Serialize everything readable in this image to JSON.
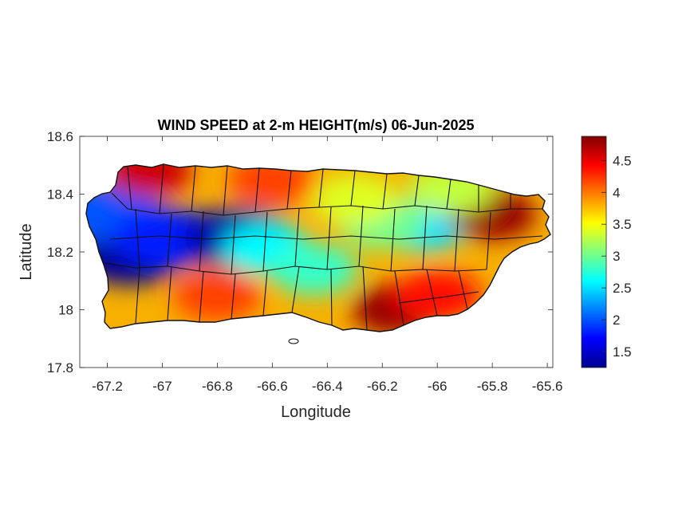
{
  "chart_data": {
    "type": "heatmap",
    "title": "WIND SPEED at 2-m HEIGHT(m/s) 06-Jun-2025",
    "xlabel": "Longitude",
    "ylabel": "Latitude",
    "xlim": [
      -67.3,
      -65.58
    ],
    "ylim": [
      17.8,
      18.6
    ],
    "x_ticks": [
      -67.2,
      -67,
      -66.8,
      -66.6,
      -66.4,
      -66.2,
      -66,
      -65.8,
      -65.6
    ],
    "x_tick_labels": [
      "-67.2",
      "-67",
      "-66.8",
      "-66.6",
      "-66.4",
      "-66.2",
      "-66",
      "-65.8",
      "-65.6"
    ],
    "y_ticks": [
      17.8,
      18,
      18.2,
      18.4,
      18.6
    ],
    "y_tick_labels": [
      "17.8",
      "18",
      "18.2",
      "18.4",
      "18.6"
    ],
    "colorbar": {
      "colormap": "jet",
      "range": [
        1.25,
        4.88
      ],
      "ticks": [
        1.5,
        2,
        2.5,
        3,
        3.5,
        4,
        4.5
      ],
      "tick_labels": [
        "1.5",
        "2",
        "2.5",
        "3",
        "3.5",
        "4",
        "4.5"
      ]
    },
    "grid": false,
    "wind_speed_hotspots": [
      {
        "lon": -67.12,
        "lat": 18.19,
        "value": 1.3
      },
      {
        "lon": -67.2,
        "lat": 18.34,
        "value": 2.0
      },
      {
        "lon": -66.98,
        "lat": 18.25,
        "value": 1.8
      },
      {
        "lon": -66.72,
        "lat": 18.25,
        "value": 1.4
      },
      {
        "lon": -66.62,
        "lat": 18.21,
        "value": 2.6
      },
      {
        "lon": -66.45,
        "lat": 18.14,
        "value": 2.8
      },
      {
        "lon": -66.05,
        "lat": 18.29,
        "value": 2.5
      },
      {
        "lon": -66.2,
        "lat": 18.3,
        "value": 3.0
      },
      {
        "lon": -67.05,
        "lat": 18.48,
        "value": 4.6
      },
      {
        "lon": -66.6,
        "lat": 18.45,
        "value": 4.2
      },
      {
        "lon": -65.8,
        "lat": 18.33,
        "value": 4.8
      },
      {
        "lon": -66.15,
        "lat": 18.0,
        "value": 4.8
      },
      {
        "lon": -66.0,
        "lat": 18.05,
        "value": 4.4
      },
      {
        "lon": -66.8,
        "lat": 18.05,
        "value": 4.2
      },
      {
        "lon": -65.95,
        "lat": 18.42,
        "value": 3.3
      },
      {
        "lon": -66.3,
        "lat": 18.38,
        "value": 3.4
      }
    ]
  }
}
